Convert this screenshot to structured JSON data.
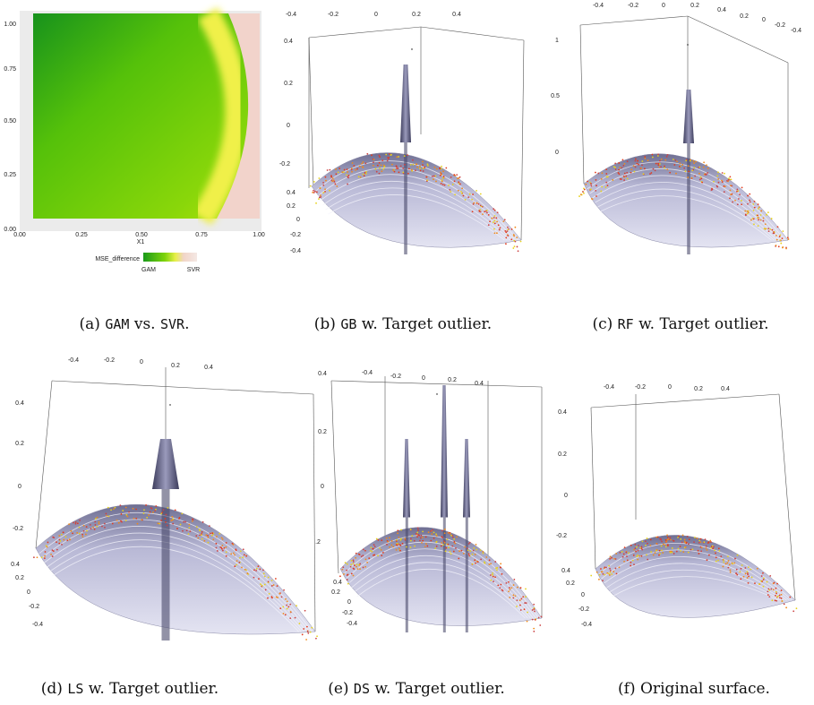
{
  "panels": [
    {
      "plot": {
        "y_ticks": [
          "1.00",
          "0.75",
          "0.50",
          "0.25",
          "0.00"
        ],
        "x_ticks": [
          "0.00",
          "0.25",
          "0.50",
          "0.75",
          "1.00"
        ],
        "x_label": "X1",
        "legend": {
          "title": "MSE_difference",
          "labels": [
            "GAM",
            "SVR"
          ]
        }
      },
      "caption": [
        {
          "text": "(a) "
        },
        {
          "text": "GAM",
          "code": true
        },
        {
          "text": " vs. "
        },
        {
          "text": "SVR",
          "code": true
        },
        {
          "text": "."
        }
      ]
    },
    {
      "ticks": {
        "top": [
          "-0.4",
          "-0.2",
          "0",
          "0.2",
          "0.4"
        ],
        "left": [
          "0.4",
          "0.2",
          "0",
          "-0.2"
        ],
        "lower": [
          "0.4",
          "0.2",
          "0",
          "-0.2",
          "-0.4"
        ]
      },
      "caption": [
        {
          "text": "(b) "
        },
        {
          "text": "GB",
          "code": true
        },
        {
          "text": " w. Target outlier."
        }
      ]
    },
    {
      "ticks": {
        "top": [
          "-0.4",
          "-0.2",
          "0",
          "0.2",
          "0.4",
          "0.2",
          "0",
          "-0.2",
          "-0.4"
        ],
        "left": [
          "1",
          "0.5",
          "0"
        ]
      },
      "caption": [
        {
          "text": "(c) "
        },
        {
          "text": "RF",
          "code": true
        },
        {
          "text": " w. Target outlier."
        }
      ]
    },
    {
      "ticks": {
        "top": [
          "-0.4",
          "-0.2",
          "0",
          "0.2",
          "0.4"
        ],
        "left": [
          "0.4",
          "0.2",
          "0",
          "-0.2"
        ],
        "lower": [
          "0.4",
          "0.2",
          "0",
          "-0.2",
          "-0.4"
        ]
      },
      "caption": [
        {
          "text": "(d) "
        },
        {
          "text": "LS",
          "code": true
        },
        {
          "text": " w. Target outlier."
        }
      ]
    },
    {
      "ticks": {
        "top": [
          "-0.4",
          "-0.2",
          "0",
          "0.2",
          "0.4"
        ],
        "left": [
          "0.4",
          "0.2",
          "0",
          ".2"
        ],
        "lower": [
          "0.4",
          "0.2",
          "0",
          "-0.2",
          "-0.4"
        ]
      },
      "caption": [
        {
          "text": "(e) "
        },
        {
          "text": "DS",
          "code": true
        },
        {
          "text": " w. Target outlier."
        }
      ]
    },
    {
      "ticks": {
        "top": [
          "-0.4",
          "-0.2",
          "0",
          "0.2",
          "0.4"
        ],
        "left": [
          "0.4",
          "0.2",
          "0",
          "-0.2"
        ],
        "lower": [
          "0.4",
          "0.2",
          "0",
          "-0.2",
          "-0.4"
        ]
      },
      "caption": [
        {
          "text": "(f) Original surface."
        }
      ]
    }
  ]
}
